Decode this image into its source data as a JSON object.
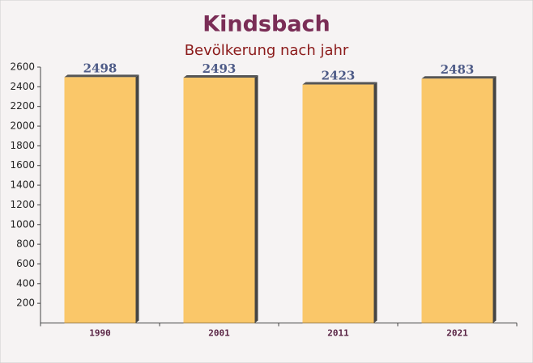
{
  "chart_data": {
    "type": "bar",
    "title": "Kindsbach",
    "subtitle": "Bevölkerung nach jahr",
    "categories": [
      "1990",
      "2001",
      "2011",
      "2021"
    ],
    "values": [
      2498,
      2493,
      2423,
      2483
    ],
    "color": "#fbc25a",
    "ylim": [
      0,
      2600
    ],
    "yticks": [
      200,
      400,
      600,
      800,
      1000,
      1200,
      1400,
      1600,
      1800,
      2000,
      2200,
      2400,
      2600
    ]
  }
}
